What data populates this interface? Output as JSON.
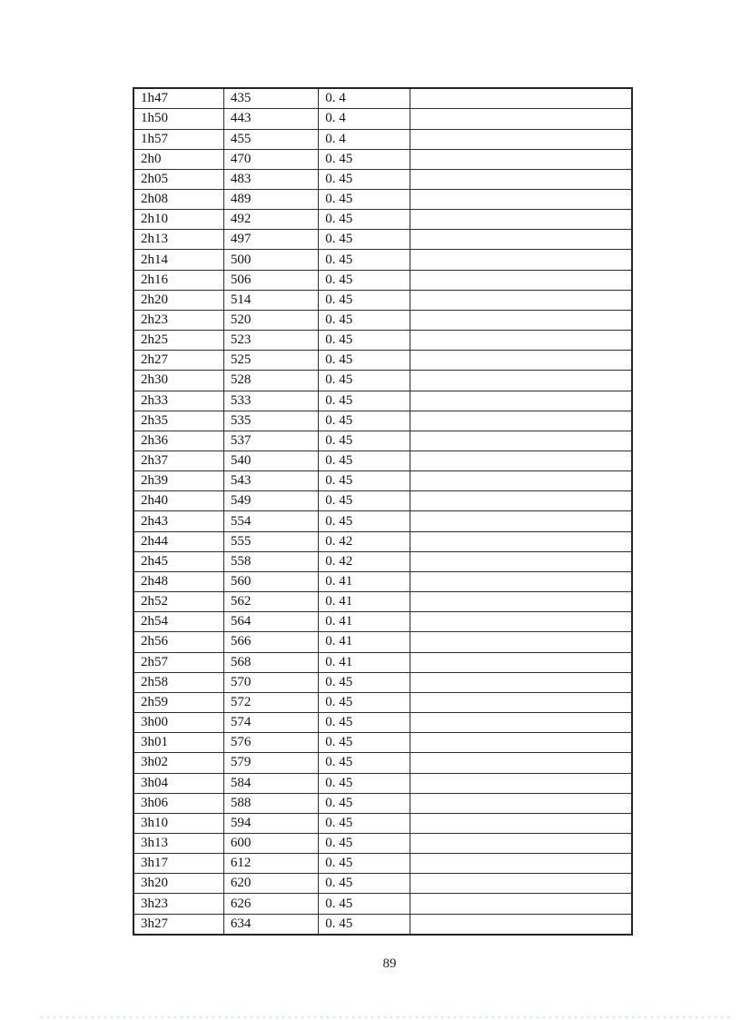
{
  "page": {
    "number": "89"
  },
  "table": {
    "rows": [
      [
        "1h47",
        "435",
        "0. 4",
        ""
      ],
      [
        "1h50",
        "443",
        "0. 4",
        ""
      ],
      [
        "1h57",
        "455",
        "0. 4",
        ""
      ],
      [
        "2h0",
        "470",
        "0. 45",
        ""
      ],
      [
        "2h05",
        "483",
        "0. 45",
        ""
      ],
      [
        "2h08",
        "489",
        "0. 45",
        ""
      ],
      [
        "2h10",
        "492",
        "0. 45",
        ""
      ],
      [
        "2h13",
        "497",
        "0. 45",
        ""
      ],
      [
        "2h14",
        "500",
        "0. 45",
        ""
      ],
      [
        "2h16",
        "506",
        "0. 45",
        ""
      ],
      [
        "2h20",
        "514",
        "0. 45",
        ""
      ],
      [
        "2h23",
        "520",
        "0. 45",
        ""
      ],
      [
        "2h25",
        "523",
        "0. 45",
        ""
      ],
      [
        "2h27",
        "525",
        "0. 45",
        ""
      ],
      [
        "2h30",
        "528",
        "0. 45",
        ""
      ],
      [
        "2h33",
        "533",
        "0. 45",
        ""
      ],
      [
        "2h35",
        "535",
        "0. 45",
        ""
      ],
      [
        "2h36",
        "537",
        "0. 45",
        ""
      ],
      [
        "2h37",
        "540",
        "0. 45",
        ""
      ],
      [
        "2h39",
        "543",
        "0. 45",
        ""
      ],
      [
        "2h40",
        "549",
        "0. 45",
        ""
      ],
      [
        "2h43",
        "554",
        "0. 45",
        ""
      ],
      [
        "2h44",
        "555",
        "0. 42",
        ""
      ],
      [
        "2h45",
        "558",
        "0. 42",
        ""
      ],
      [
        "2h48",
        "560",
        "0. 41",
        ""
      ],
      [
        "2h52",
        "562",
        "0. 41",
        ""
      ],
      [
        "2h54",
        "564",
        "0. 41",
        ""
      ],
      [
        "2h56",
        "566",
        "0. 41",
        ""
      ],
      [
        "2h57",
        "568",
        "0. 41",
        ""
      ],
      [
        "2h58",
        "570",
        "0. 45",
        ""
      ],
      [
        "2h59",
        "572",
        "0. 45",
        ""
      ],
      [
        "3h00",
        "574",
        "0. 45",
        ""
      ],
      [
        "3h01",
        "576",
        "0. 45",
        ""
      ],
      [
        "3h02",
        "579",
        "0. 45",
        ""
      ],
      [
        "3h04",
        "584",
        "0. 45",
        ""
      ],
      [
        "3h06",
        "588",
        "0. 45",
        ""
      ],
      [
        "3h10",
        "594",
        "0. 45",
        ""
      ],
      [
        "3h13",
        "600",
        "0. 45",
        ""
      ],
      [
        "3h17",
        "612",
        "0. 45",
        ""
      ],
      [
        "3h20",
        "620",
        "0. 45",
        ""
      ],
      [
        "3h23",
        "626",
        "0. 45",
        ""
      ],
      [
        "3h27",
        "634",
        "0. 45",
        ""
      ]
    ]
  }
}
